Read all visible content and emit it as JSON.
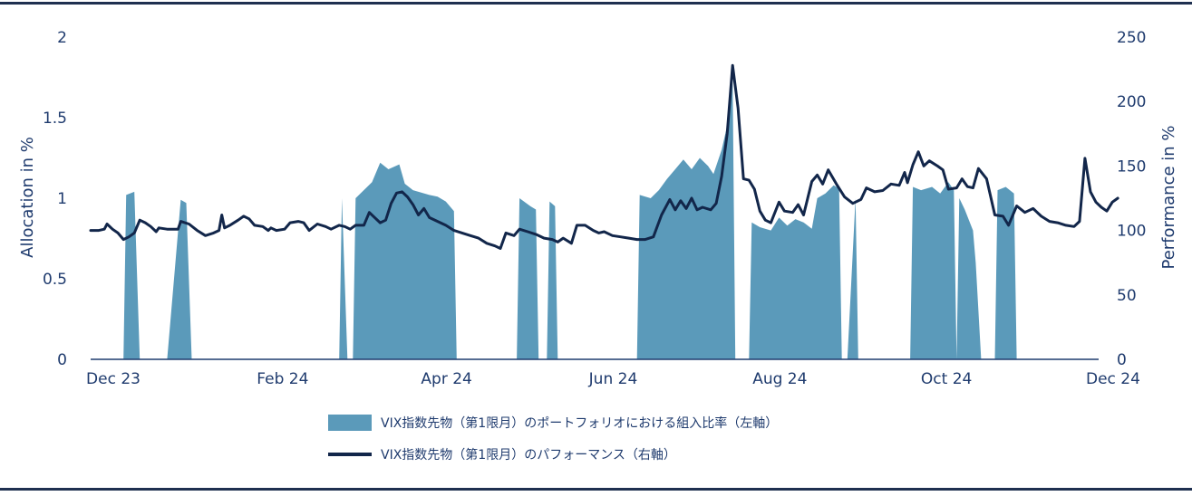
{
  "chart_data": {
    "type": "area+line",
    "xlabel": "",
    "ylabel_left": "Allocation in %",
    "ylabel_right": "Performance in %",
    "x_range": [
      "2023-12-01",
      "2024-12-04"
    ],
    "ylim_left": [
      0,
      2
    ],
    "ylim_right": [
      0,
      250
    ],
    "yticks_left": [
      "0",
      "0.5",
      "1",
      "1.5",
      "2"
    ],
    "yticks_right": [
      "0",
      "50",
      "100",
      "150",
      "200",
      "250"
    ],
    "xticks": [
      {
        "label": "Dec 23",
        "date": "2023-12-01"
      },
      {
        "label": "Feb 24",
        "date": "2024-02-01"
      },
      {
        "label": "Apr 24",
        "date": "2024-04-01"
      },
      {
        "label": "Jun 24",
        "date": "2024-06-01"
      },
      {
        "label": "Aug 24",
        "date": "2024-08-01"
      },
      {
        "label": "Oct 24",
        "date": "2024-10-01"
      },
      {
        "label": "Dec 24",
        "date": "2024-12-01"
      }
    ],
    "grid": false,
    "legend_position": "bottom",
    "series": [
      {
        "name": "VIX指数先物（第1限月）のポートフォリオにおける組入比率（左軸）",
        "type": "area",
        "axis": "left",
        "color": "#5b9aba",
        "points": [
          [
            "2023-12-01",
            0
          ],
          [
            "2023-12-13",
            0
          ],
          [
            "2023-12-14",
            1.02
          ],
          [
            "2023-12-17",
            1.04
          ],
          [
            "2023-12-19",
            0
          ],
          [
            "2023-12-29",
            0
          ],
          [
            "2024-01-03",
            0.99
          ],
          [
            "2024-01-05",
            0.97
          ],
          [
            "2024-01-07",
            0
          ],
          [
            "2024-03-01",
            0
          ],
          [
            "2024-03-02",
            1.0
          ],
          [
            "2024-03-04",
            0
          ],
          [
            "2024-03-06",
            0
          ],
          [
            "2024-03-07",
            1.0
          ],
          [
            "2024-03-13",
            1.1
          ],
          [
            "2024-03-16",
            1.22
          ],
          [
            "2024-03-19",
            1.18
          ],
          [
            "2024-03-23",
            1.21
          ],
          [
            "2024-03-25",
            1.09
          ],
          [
            "2024-03-28",
            1.05
          ],
          [
            "2024-04-03",
            1.02
          ],
          [
            "2024-04-06",
            1.01
          ],
          [
            "2024-04-09",
            0.98
          ],
          [
            "2024-04-12",
            0.92
          ],
          [
            "2024-04-13",
            0
          ],
          [
            "2024-05-05",
            0
          ],
          [
            "2024-05-06",
            1.0
          ],
          [
            "2024-05-10",
            0.95
          ],
          [
            "2024-05-12",
            0.93
          ],
          [
            "2024-05-13",
            0
          ],
          [
            "2024-05-16",
            0
          ],
          [
            "2024-05-17",
            0.98
          ],
          [
            "2024-05-19",
            0.95
          ],
          [
            "2024-05-20",
            0
          ],
          [
            "2024-06-18",
            0
          ],
          [
            "2024-06-19",
            1.02
          ],
          [
            "2024-06-23",
            1.0
          ],
          [
            "2024-06-26",
            1.05
          ],
          [
            "2024-06-29",
            1.12
          ],
          [
            "2024-07-02",
            1.18
          ],
          [
            "2024-07-05",
            1.24
          ],
          [
            "2024-07-08",
            1.18
          ],
          [
            "2024-07-11",
            1.25
          ],
          [
            "2024-07-14",
            1.2
          ],
          [
            "2024-07-16",
            1.15
          ],
          [
            "2024-07-19",
            1.3
          ],
          [
            "2024-07-21",
            1.45
          ],
          [
            "2024-07-23",
            1.75
          ],
          [
            "2024-07-24",
            0
          ],
          [
            "2024-07-29",
            0
          ],
          [
            "2024-07-30",
            0.85
          ],
          [
            "2024-08-02",
            0.82
          ],
          [
            "2024-08-06",
            0.8
          ],
          [
            "2024-08-09",
            0.88
          ],
          [
            "2024-08-12",
            0.83
          ],
          [
            "2024-08-15",
            0.87
          ],
          [
            "2024-08-18",
            0.85
          ],
          [
            "2024-08-21",
            0.81
          ],
          [
            "2024-08-23",
            1.0
          ],
          [
            "2024-08-26",
            1.03
          ],
          [
            "2024-08-29",
            1.08
          ],
          [
            "2024-08-31",
            1.06
          ],
          [
            "2024-09-01",
            0
          ],
          [
            "2024-09-03",
            0
          ],
          [
            "2024-09-06",
            1.0
          ],
          [
            "2024-09-07",
            0
          ],
          [
            "2024-09-26",
            0
          ],
          [
            "2024-09-27",
            1.07
          ],
          [
            "2024-09-30",
            1.05
          ],
          [
            "2024-10-04",
            1.07
          ],
          [
            "2024-10-07",
            1.03
          ],
          [
            "2024-10-10",
            1.1
          ],
          [
            "2024-10-12",
            1.05
          ],
          [
            "2024-10-13",
            0
          ],
          [
            "2024-10-14",
            1.0
          ],
          [
            "2024-10-16",
            0.93
          ],
          [
            "2024-10-19",
            0.8
          ],
          [
            "2024-10-20",
            0.6
          ],
          [
            "2024-10-22",
            0
          ],
          [
            "2024-10-27",
            0
          ],
          [
            "2024-10-28",
            1.05
          ],
          [
            "2024-10-31",
            1.07
          ],
          [
            "2024-11-03",
            1.03
          ],
          [
            "2024-11-04",
            0
          ],
          [
            "2024-12-04",
            0
          ]
        ]
      },
      {
        "name": "VIX指数先物（第1限月）のパフォーマンス（右軸）",
        "type": "line",
        "axis": "right",
        "color": "#12264a",
        "points": [
          [
            "2023-12-01",
            100
          ],
          [
            "2023-12-04",
            100
          ],
          [
            "2023-12-06",
            101
          ],
          [
            "2023-12-07",
            105
          ],
          [
            "2023-12-09",
            101
          ],
          [
            "2023-12-11",
            98
          ],
          [
            "2023-12-13",
            93
          ],
          [
            "2023-12-15",
            95
          ],
          [
            "2023-12-17",
            98
          ],
          [
            "2023-12-19",
            108
          ],
          [
            "2023-12-21",
            106
          ],
          [
            "2023-12-23",
            103
          ],
          [
            "2023-12-25",
            99
          ],
          [
            "2023-12-26",
            102
          ],
          [
            "2023-12-29",
            101
          ],
          [
            "2024-01-02",
            101
          ],
          [
            "2024-01-03",
            107
          ],
          [
            "2024-01-06",
            105
          ],
          [
            "2024-01-09",
            100
          ],
          [
            "2024-01-12",
            96
          ],
          [
            "2024-01-15",
            98
          ],
          [
            "2024-01-17",
            100
          ],
          [
            "2024-01-18",
            112
          ],
          [
            "2024-01-19",
            102
          ],
          [
            "2024-01-21",
            104
          ],
          [
            "2024-01-24",
            108
          ],
          [
            "2024-01-26",
            111
          ],
          [
            "2024-01-28",
            109
          ],
          [
            "2024-01-30",
            104
          ],
          [
            "2024-02-02",
            103
          ],
          [
            "2024-02-04",
            100
          ],
          [
            "2024-02-05",
            102
          ],
          [
            "2024-02-07",
            100
          ],
          [
            "2024-02-10",
            101
          ],
          [
            "2024-02-12",
            106
          ],
          [
            "2024-02-15",
            107
          ],
          [
            "2024-02-17",
            106
          ],
          [
            "2024-02-19",
            100
          ],
          [
            "2024-02-22",
            105
          ],
          [
            "2024-02-25",
            103
          ],
          [
            "2024-02-27",
            101
          ],
          [
            "2024-03-01",
            104
          ],
          [
            "2024-03-03",
            103
          ],
          [
            "2024-03-05",
            101
          ],
          [
            "2024-03-07",
            104
          ],
          [
            "2024-03-10",
            104
          ],
          [
            "2024-03-12",
            114
          ],
          [
            "2024-03-14",
            110
          ],
          [
            "2024-03-16",
            106
          ],
          [
            "2024-03-18",
            108
          ],
          [
            "2024-03-20",
            121
          ],
          [
            "2024-03-22",
            129
          ],
          [
            "2024-03-24",
            130
          ],
          [
            "2024-03-26",
            126
          ],
          [
            "2024-03-28",
            120
          ],
          [
            "2024-03-30",
            112
          ],
          [
            "2024-04-01",
            117
          ],
          [
            "2024-04-03",
            110
          ],
          [
            "2024-04-06",
            107
          ],
          [
            "2024-04-09",
            104
          ],
          [
            "2024-04-12",
            100
          ],
          [
            "2024-04-15",
            98
          ],
          [
            "2024-04-18",
            96
          ],
          [
            "2024-04-21",
            94
          ],
          [
            "2024-04-24",
            90
          ],
          [
            "2024-04-27",
            88
          ],
          [
            "2024-04-29",
            86
          ],
          [
            "2024-05-01",
            98
          ],
          [
            "2024-05-04",
            96
          ],
          [
            "2024-05-06",
            101
          ],
          [
            "2024-05-09",
            99
          ],
          [
            "2024-05-12",
            97
          ],
          [
            "2024-05-15",
            94
          ],
          [
            "2024-05-18",
            93
          ],
          [
            "2024-05-20",
            91
          ],
          [
            "2024-05-22",
            94
          ],
          [
            "2024-05-25",
            90
          ],
          [
            "2024-05-27",
            104
          ],
          [
            "2024-05-30",
            104
          ],
          [
            "2024-06-02",
            100
          ],
          [
            "2024-06-04",
            98
          ],
          [
            "2024-06-06",
            99
          ],
          [
            "2024-06-09",
            96
          ],
          [
            "2024-06-12",
            95
          ],
          [
            "2024-06-15",
            94
          ],
          [
            "2024-06-18",
            93
          ],
          [
            "2024-06-21",
            93
          ],
          [
            "2024-06-24",
            95
          ],
          [
            "2024-06-27",
            112
          ],
          [
            "2024-06-30",
            124
          ],
          [
            "2024-07-02",
            116
          ],
          [
            "2024-07-04",
            123
          ],
          [
            "2024-07-06",
            117
          ],
          [
            "2024-07-08",
            125
          ],
          [
            "2024-07-10",
            116
          ],
          [
            "2024-07-12",
            118
          ],
          [
            "2024-07-15",
            116
          ],
          [
            "2024-07-17",
            121
          ],
          [
            "2024-07-19",
            142
          ],
          [
            "2024-07-21",
            175
          ],
          [
            "2024-07-23",
            228
          ],
          [
            "2024-07-25",
            195
          ],
          [
            "2024-07-27",
            140
          ],
          [
            "2024-07-29",
            139
          ],
          [
            "2024-07-31",
            132
          ],
          [
            "2024-08-02",
            115
          ],
          [
            "2024-08-04",
            108
          ],
          [
            "2024-08-06",
            106
          ],
          [
            "2024-08-09",
            122
          ],
          [
            "2024-08-11",
            115
          ],
          [
            "2024-08-14",
            114
          ],
          [
            "2024-08-16",
            120
          ],
          [
            "2024-08-18",
            112
          ],
          [
            "2024-08-21",
            138
          ],
          [
            "2024-08-23",
            143
          ],
          [
            "2024-08-25",
            136
          ],
          [
            "2024-08-27",
            147
          ],
          [
            "2024-08-30",
            136
          ],
          [
            "2024-09-02",
            126
          ],
          [
            "2024-09-05",
            121
          ],
          [
            "2024-09-08",
            124
          ],
          [
            "2024-09-10",
            133
          ],
          [
            "2024-09-13",
            130
          ],
          [
            "2024-09-16",
            131
          ],
          [
            "2024-09-19",
            136
          ],
          [
            "2024-09-22",
            135
          ],
          [
            "2024-09-24",
            145
          ],
          [
            "2024-09-25",
            137
          ],
          [
            "2024-09-27",
            151
          ],
          [
            "2024-09-29",
            161
          ],
          [
            "2024-10-01",
            150
          ],
          [
            "2024-10-03",
            154
          ],
          [
            "2024-10-06",
            150
          ],
          [
            "2024-10-08",
            147
          ],
          [
            "2024-10-10",
            132
          ],
          [
            "2024-10-13",
            133
          ],
          [
            "2024-10-15",
            140
          ],
          [
            "2024-10-17",
            134
          ],
          [
            "2024-10-19",
            133
          ],
          [
            "2024-10-21",
            148
          ],
          [
            "2024-10-24",
            140
          ],
          [
            "2024-10-27",
            112
          ],
          [
            "2024-10-30",
            111
          ],
          [
            "2024-11-01",
            104
          ],
          [
            "2024-11-04",
            119
          ],
          [
            "2024-11-07",
            114
          ],
          [
            "2024-11-10",
            117
          ],
          [
            "2024-11-13",
            111
          ],
          [
            "2024-11-16",
            107
          ],
          [
            "2024-11-19",
            106
          ],
          [
            "2024-11-22",
            104
          ],
          [
            "2024-11-25",
            103
          ],
          [
            "2024-11-27",
            107
          ],
          [
            "2024-11-29",
            156
          ],
          [
            "2024-12-01",
            130
          ],
          [
            "2024-12-03",
            122
          ],
          [
            "2024-12-05",
            118
          ],
          [
            "2024-12-07",
            115
          ],
          [
            "2024-12-09",
            122
          ],
          [
            "2024-12-11",
            125
          ]
        ]
      }
    ]
  },
  "legend": {
    "area_label": "VIX指数先物（第1限月）のポートフォリオにおける組入比率（左軸）",
    "line_label": "VIX指数先物（第1限月）のパフォーマンス（右軸）"
  }
}
